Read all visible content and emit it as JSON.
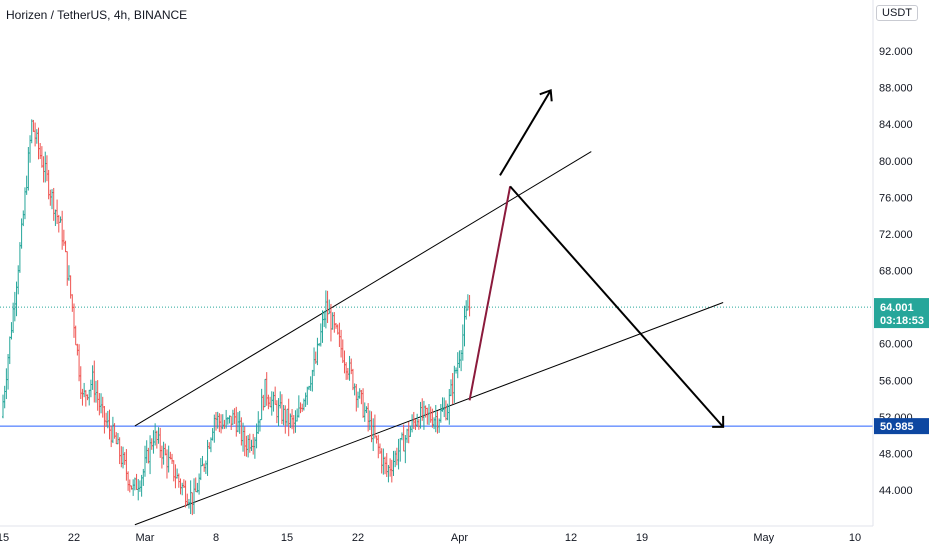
{
  "header": {
    "title": "Horizen / TetherUS, 4h, BINANCE",
    "currency_button": "USDT"
  },
  "colors": {
    "up": "#26a69a",
    "down": "#ef5350",
    "axis_line": "#e0e3eb",
    "price_line": "#26a69a",
    "support_line": "#2962ff",
    "projection_wick": "#8b1a3c"
  },
  "price_tag": {
    "price": "64.001",
    "countdown": "03:18:53",
    "color": "#26a69a"
  },
  "support_tag": {
    "price": "50.985",
    "color": "#0d47a1"
  },
  "chart_data": {
    "type": "line",
    "title": "Horizen / TetherUS, 4h, BINANCE",
    "y_axis": {
      "ticks": [
        "92.000",
        "88.000",
        "84.000",
        "80.000",
        "76.000",
        "72.000",
        "68.000",
        "64.000",
        "60.000",
        "56.000",
        "52.000",
        "48.000",
        "44.000"
      ],
      "tick_values": [
        92,
        88,
        84,
        80,
        76,
        72,
        68,
        64,
        60,
        56,
        52,
        48,
        44
      ],
      "range": [
        40.2,
        95.0
      ]
    },
    "x_axis": {
      "ticks": [
        "15",
        "22",
        "Mar",
        "8",
        "15",
        "22",
        "Apr",
        "12",
        "19",
        "May",
        "10"
      ],
      "tick_dates": [
        "2021-02-15",
        "2021-02-22",
        "2021-03-01",
        "2021-03-08",
        "2021-03-15",
        "2021-03-22",
        "2021-04-01",
        "2021-04-12",
        "2021-04-19",
        "2021-05-01",
        "2021-05-10"
      ],
      "range": [
        "2021-02-15",
        "2021-05-10"
      ]
    },
    "grid": false,
    "series": [
      {
        "values": [
          {
            "x": "2021-02-15",
            "y": 52
          },
          {
            "x": "2021-02-16",
            "y": 62
          },
          {
            "x": "2021-02-17",
            "y": 72
          },
          {
            "x": "2021-02-18",
            "y": 84
          },
          {
            "x": "2021-02-19",
            "y": 80
          },
          {
            "x": "2021-02-20",
            "y": 76
          },
          {
            "x": "2021-02-21",
            "y": 72
          },
          {
            "x": "2021-02-22",
            "y": 64
          },
          {
            "x": "2021-02-23",
            "y": 54
          },
          {
            "x": "2021-02-24",
            "y": 56
          },
          {
            "x": "2021-02-25",
            "y": 52
          },
          {
            "x": "2021-02-26",
            "y": 50
          },
          {
            "x": "2021-02-27",
            "y": 47
          },
          {
            "x": "2021-02-28",
            "y": 44
          },
          {
            "x": "2021-03-01",
            "y": 46
          },
          {
            "x": "2021-03-02",
            "y": 50
          },
          {
            "x": "2021-03-03",
            "y": 48
          },
          {
            "x": "2021-03-04",
            "y": 46
          },
          {
            "x": "2021-03-05",
            "y": 44
          },
          {
            "x": "2021-03-06",
            "y": 43
          },
          {
            "x": "2021-03-07",
            "y": 47
          },
          {
            "x": "2021-03-08",
            "y": 52
          },
          {
            "x": "2021-03-09",
            "y": 51
          },
          {
            "x": "2021-03-10",
            "y": 52
          },
          {
            "x": "2021-03-11",
            "y": 49
          },
          {
            "x": "2021-03-12",
            "y": 50
          },
          {
            "x": "2021-03-13",
            "y": 55
          },
          {
            "x": "2021-03-14",
            "y": 53
          },
          {
            "x": "2021-03-15",
            "y": 52
          },
          {
            "x": "2021-03-16",
            "y": 51
          },
          {
            "x": "2021-03-17",
            "y": 55
          },
          {
            "x": "2021-03-18",
            "y": 58
          },
          {
            "x": "2021-03-19",
            "y": 64
          },
          {
            "x": "2021-03-20",
            "y": 61
          },
          {
            "x": "2021-03-21",
            "y": 58
          },
          {
            "x": "2021-03-22",
            "y": 55
          },
          {
            "x": "2021-03-23",
            "y": 52
          },
          {
            "x": "2021-03-24",
            "y": 49
          },
          {
            "x": "2021-03-25",
            "y": 46
          },
          {
            "x": "2021-03-26",
            "y": 48
          },
          {
            "x": "2021-03-27",
            "y": 50
          },
          {
            "x": "2021-03-28",
            "y": 52
          },
          {
            "x": "2021-03-29",
            "y": 52
          },
          {
            "x": "2021-03-30",
            "y": 52
          },
          {
            "x": "2021-03-31",
            "y": 53
          },
          {
            "x": "2021-04-01",
            "y": 58
          },
          {
            "x": "2021-04-02",
            "y": 64
          }
        ]
      }
    ],
    "annotations": {
      "support_level": 50.985,
      "last_price": 64.001
    }
  }
}
